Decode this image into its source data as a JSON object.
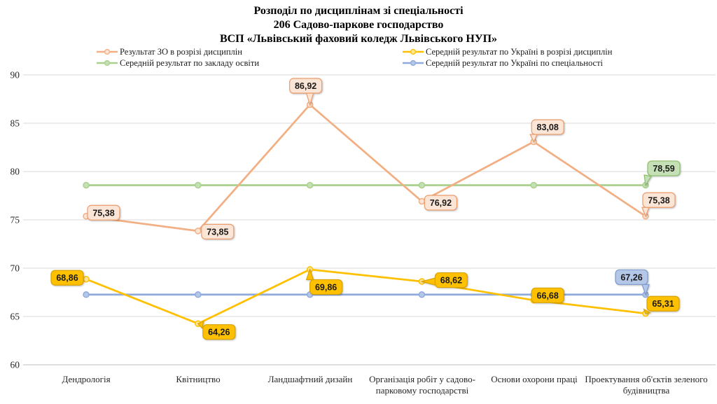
{
  "title": {
    "line1": "Розподіл по дисциплінам зі спеціальності",
    "line2": "206 Садово-паркове господарство",
    "line3": "ВСП «Львівський фаховий коледж Львівського НУП»"
  },
  "chart_data": {
    "type": "line",
    "title": "Розподіл по дисциплінам зі спеціальності 206 Садово-паркове господарство ВСП «Львівський фаховий коледж Львівського НУП»",
    "ylim": [
      60,
      90
    ],
    "yticks": [
      60,
      65,
      70,
      75,
      80,
      85,
      90
    ],
    "grid": true,
    "legend_position": "top",
    "categories": [
      "Дендрологія",
      "Квітництво",
      "Ландшафтний дизайн",
      "Організація робіт у садово-парковому господарстві",
      "Основи охорони праці",
      "Проектування об'єктів зеленого будівництва"
    ],
    "series": [
      {
        "name": "Результат ЗО в розрізі дисциплін",
        "color": "#F2AF84",
        "marker_fill": "#FBE5D6",
        "label_fill": "#FBE5D6",
        "label_stroke": "#ED9D6C",
        "values": [
          75.38,
          73.85,
          86.92,
          76.92,
          83.08,
          75.38
        ],
        "labels": [
          "75,38",
          "73,85",
          "86,92",
          "76,92",
          "83,08",
          "75,38"
        ]
      },
      {
        "name": "Середній результат по закладу освіти",
        "color": "#A9D18E",
        "marker_fill": "#C5E0B4",
        "label_fill": "#C5E0B4",
        "label_stroke": "#8DBE6C",
        "values": [
          78.59,
          78.59,
          78.59,
          78.59,
          78.59,
          78.59
        ],
        "labels": [
          null,
          null,
          null,
          null,
          null,
          "78,59"
        ]
      },
      {
        "name": "Середній результат по Україні в розрізі дисциплін",
        "color": "#FFC000",
        "marker_fill": "#FFE699",
        "label_fill": "#FFC000",
        "label_stroke": "#D9A300",
        "values": [
          68.86,
          64.26,
          69.86,
          68.62,
          66.68,
          65.31
        ],
        "labels": [
          "68,86",
          "64,26",
          "69,86",
          "68,62",
          "66,68",
          "65,31"
        ]
      },
      {
        "name": "Середній результат по Україні по спеціальності",
        "color": "#8FAADC",
        "marker_fill": "#B4C7E7",
        "label_fill": "#B4C7E7",
        "label_stroke": "#7C9AD0",
        "values": [
          67.26,
          67.26,
          67.26,
          67.26,
          67.26,
          67.26
        ],
        "labels": [
          null,
          null,
          null,
          null,
          null,
          "67,26"
        ]
      }
    ],
    "axis_color": "#BFBFBF",
    "gridline_color": "#D9D9D9",
    "tick_label_color": "#262626"
  }
}
